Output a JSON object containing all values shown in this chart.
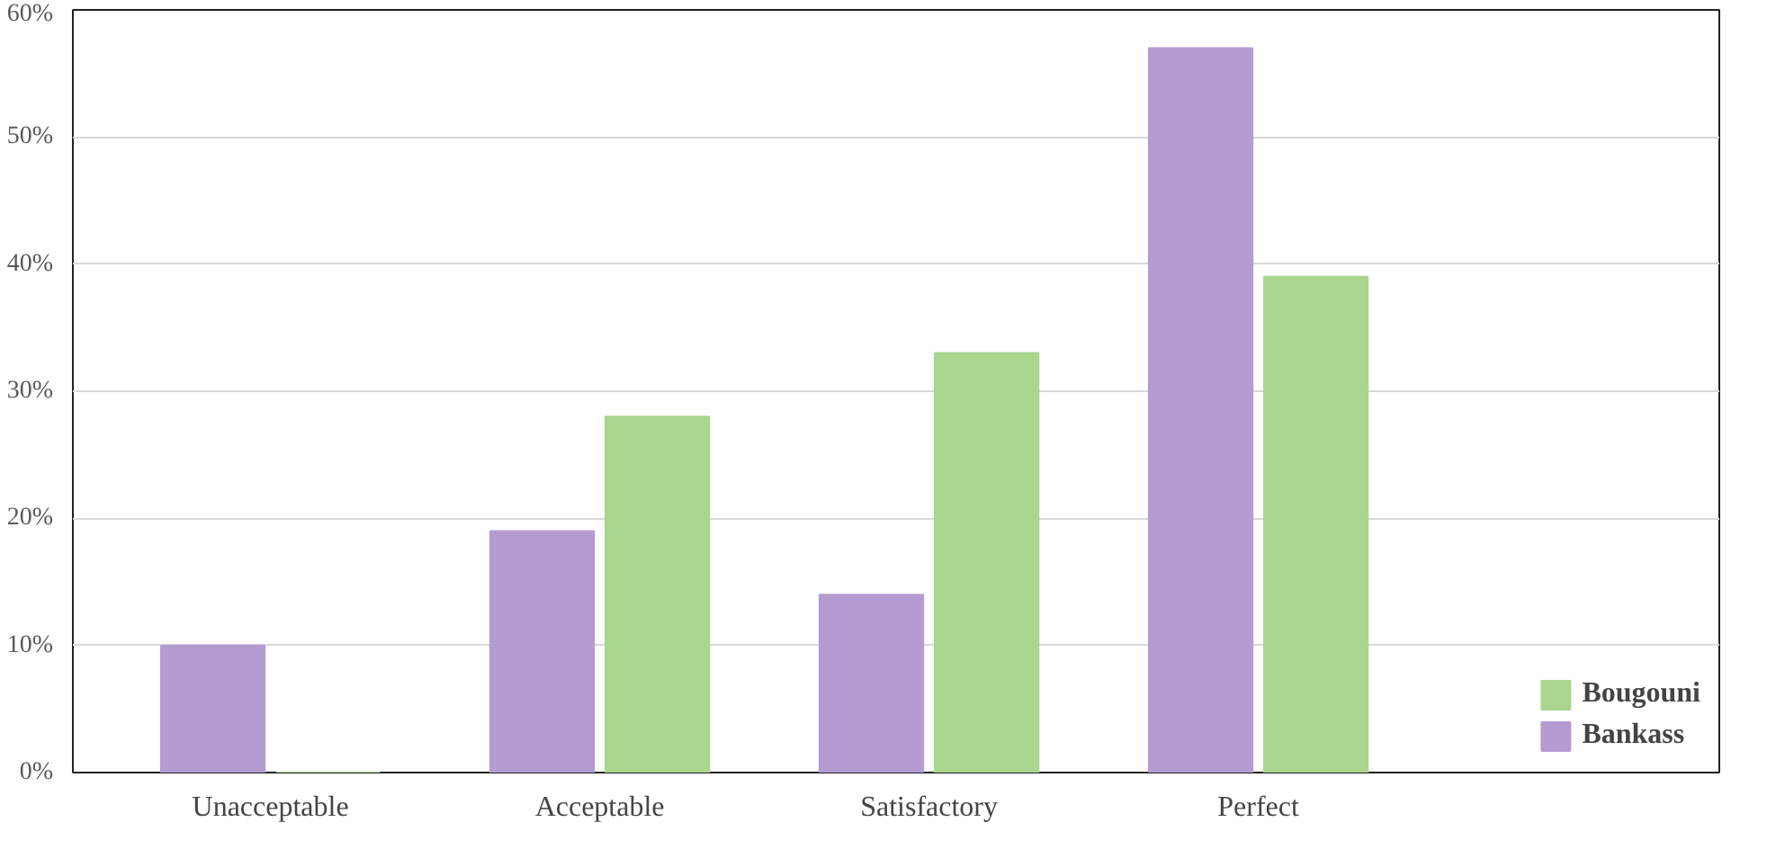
{
  "chart_data": {
    "type": "bar",
    "categories": [
      "Unacceptable",
      "Acceptable",
      "Satisfactory",
      "Perfect"
    ],
    "series": [
      {
        "name": "Bankass",
        "color": "#b49cd2",
        "values": [
          10,
          19,
          14,
          57
        ]
      },
      {
        "name": "Bougouni",
        "color": "#a9d58e",
        "values": [
          0,
          28,
          33,
          39
        ]
      }
    ],
    "ylim": [
      0,
      60
    ],
    "yticks": [
      {
        "value": 0,
        "label": "0%"
      },
      {
        "value": 10,
        "label": "10%"
      },
      {
        "value": 20,
        "label": "20%"
      },
      {
        "value": 30,
        "label": "30%"
      },
      {
        "value": 40,
        "label": "40%"
      },
      {
        "value": 50,
        "label": "50%"
      },
      {
        "value": 60,
        "label": "60%"
      }
    ],
    "grid": "y",
    "legend": "bottom right"
  }
}
